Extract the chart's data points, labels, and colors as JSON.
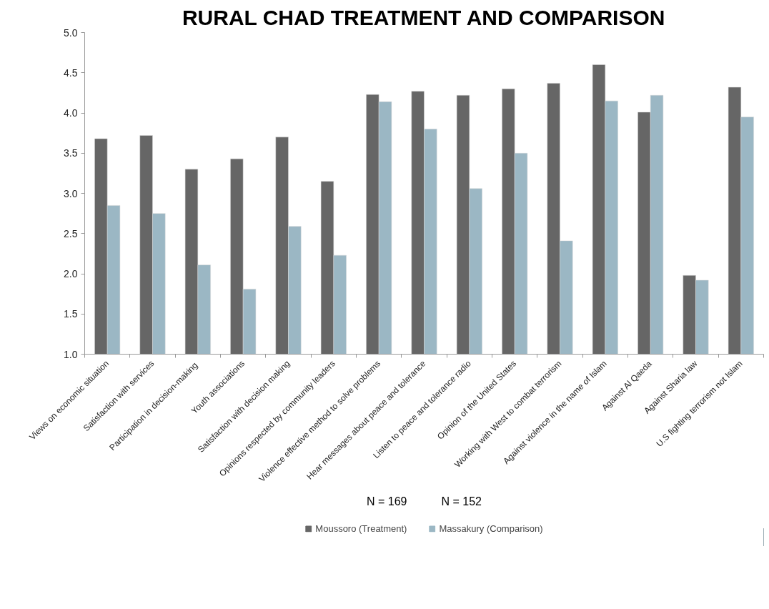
{
  "chart_data": {
    "type": "bar",
    "title": "RURAL CHAD TREATMENT AND COMPARISON",
    "categories": [
      "Views on economic situation",
      "Satisfaction with services",
      "Participation  in decision-making",
      "Youth associations",
      "Satisfaction with decision making",
      "Opinions respected by community leaders",
      "Violence effective method to solve problems",
      "Hear messages about peace and tolerance",
      "Listen to peace and tolerance radio",
      "Opinion of the United States",
      "Working with West to combat terrorism",
      "Against violence in the name of Islam",
      "Against Al Qaeda",
      "Against Sharia law",
      "U.S fighting terrorism not Islam"
    ],
    "series": [
      {
        "name": "Moussoro (Treatment)",
        "color": "#666666",
        "values": [
          3.68,
          3.72,
          3.3,
          3.43,
          3.7,
          3.15,
          4.23,
          4.27,
          4.22,
          4.3,
          4.37,
          4.6,
          4.01,
          1.98,
          4.32
        ]
      },
      {
        "name": "Massakury (Comparison)",
        "color": "#9bb7c4",
        "values": [
          2.85,
          2.75,
          2.11,
          1.81,
          2.59,
          2.23,
          4.14,
          3.8,
          3.06,
          3.5,
          2.41,
          4.15,
          4.22,
          1.92,
          3.95
        ]
      }
    ],
    "ylim": [
      1.0,
      5.0
    ],
    "yticks": [
      {
        "value": 1.0,
        "label": "1.0"
      },
      {
        "value": 1.5,
        "label": "1.5"
      },
      {
        "value": 2.0,
        "label": "2.0"
      },
      {
        "value": 2.5,
        "label": "2.5"
      },
      {
        "value": 3.0,
        "label": "3.0"
      },
      {
        "value": 3.5,
        "label": "3.5"
      },
      {
        "value": 4.0,
        "label": "4.0"
      },
      {
        "value": 4.5,
        "label": "4.5"
      },
      {
        "value": 5.0,
        "label": "5.0"
      }
    ],
    "annotations": [
      "N = 169",
      "N = 152"
    ],
    "grid": false,
    "legend": "bottom"
  }
}
